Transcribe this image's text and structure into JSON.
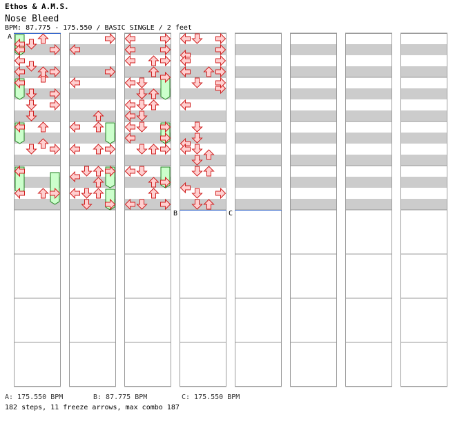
{
  "header": {
    "artist": "Ethos & A.M.S.",
    "title": "Nose Bleed",
    "meta": "BPM: 87.775 - 175.550 / BASIC SINGLE / 2 feet"
  },
  "bpm_markers": [
    {
      "label": "A",
      "column": 0,
      "beat": 0
    },
    {
      "label": "B",
      "column": 3,
      "beat": 16
    },
    {
      "label": "C",
      "column": 4,
      "beat": 16
    }
  ],
  "footer": {
    "bpm_a": "A: 175.550 BPM",
    "bpm_b": "B: 87.775 BPM",
    "bpm_c": "C: 175.550 BPM",
    "stats": "182 steps, 11 freeze arrows, max combo 187"
  },
  "colors": {
    "arrow_fill": "#ffd0d0",
    "arrow_stroke": "#d02020",
    "freeze_fill": "#ccffcc",
    "freeze_stroke": "#208020",
    "stripe": "#cccccc",
    "marker_line": "#3366cc"
  },
  "chart": {
    "columns": 8,
    "beats_per_column": 32,
    "lanes": [
      "left",
      "down",
      "up",
      "right"
    ],
    "notes": [
      [
        0,
        0,
        1
      ],
      [
        0,
        0,
        2
      ],
      [
        0,
        0,
        4
      ],
      [
        0,
        0,
        6
      ],
      [
        1,
        0,
        16
      ],
      [
        1,
        0,
        20
      ],
      [
        1,
        1,
        28
      ],
      [
        1,
        2,
        26
      ],
      [
        1,
        3,
        24
      ],
      [
        2,
        0,
        4
      ],
      [
        2,
        0,
        8
      ],
      [
        2,
        0,
        12
      ],
      [
        2,
        0,
        16
      ],
      [
        2,
        0,
        18
      ],
      [
        2,
        0,
        24
      ],
      [
        2,
        0,
        30
      ],
      [
        2,
        3,
        0
      ],
      [
        2,
        3,
        18
      ],
      [
        2,
        3,
        26
      ],
      [
        2,
        3,
        30
      ],
      [
        3,
        0,
        0
      ],
      [
        3,
        0,
        4
      ],
      [
        3,
        0,
        6
      ],
      [
        3,
        1,
        8
      ],
      [
        3,
        1,
        18
      ],
      [
        3,
        1,
        20
      ],
      [
        3,
        1,
        22
      ],
      [
        3,
        1,
        28
      ],
      [
        3,
        1,
        30
      ],
      [
        3,
        3,
        0
      ],
      [
        3,
        3,
        2
      ],
      [
        3,
        3,
        4
      ],
      [
        3,
        3,
        6
      ],
      [
        0,
        1,
        1
      ],
      [
        0,
        1,
        5
      ],
      [
        0,
        2,
        7
      ],
      [
        0,
        1,
        12
      ],
      [
        0,
        1,
        14
      ],
      [
        0,
        2,
        19
      ],
      [
        0,
        0,
        24
      ],
      [
        0,
        0,
        28
      ],
      [
        1,
        2,
        16
      ],
      [
        1,
        2,
        20
      ],
      [
        1,
        3,
        24
      ],
      [
        1,
        0,
        25
      ],
      [
        1,
        1,
        30
      ],
      [
        1,
        3,
        30
      ],
      [
        1,
        0,
        28
      ],
      [
        2,
        0,
        0
      ],
      [
        2,
        0,
        2
      ],
      [
        2,
        2,
        4
      ],
      [
        2,
        3,
        7
      ],
      [
        2,
        1,
        8
      ],
      [
        2,
        2,
        10
      ],
      [
        2,
        1,
        12
      ],
      [
        2,
        1,
        16
      ],
      [
        2,
        2,
        20
      ],
      [
        2,
        1,
        24
      ],
      [
        2,
        2,
        28
      ],
      [
        2,
        1,
        30
      ],
      [
        3,
        1,
        0
      ],
      [
        3,
        0,
        3
      ],
      [
        3,
        2,
        6
      ],
      [
        3,
        3,
        9
      ],
      [
        3,
        1,
        16
      ],
      [
        3,
        0,
        19
      ],
      [
        3,
        2,
        21
      ],
      [
        3,
        1,
        24
      ],
      [
        3,
        0,
        27
      ],
      [
        3,
        2,
        30
      ],
      [
        0,
        2,
        0
      ],
      [
        0,
        3,
        2
      ],
      [
        0,
        0,
        4
      ],
      [
        0,
        2,
        6
      ],
      [
        0,
        0,
        8
      ],
      [
        0,
        1,
        10
      ],
      [
        0,
        3,
        12
      ],
      [
        0,
        2,
        16
      ],
      [
        0,
        1,
        20
      ],
      [
        0,
        0,
        24
      ],
      [
        0,
        2,
        28
      ],
      [
        1,
        0,
        16
      ],
      [
        1,
        3,
        20
      ],
      [
        1,
        2,
        24
      ],
      [
        1,
        1,
        28
      ],
      [
        2,
        3,
        2
      ],
      [
        2,
        2,
        6
      ],
      [
        2,
        1,
        10
      ],
      [
        2,
        0,
        14
      ],
      [
        2,
        3,
        20
      ],
      [
        2,
        2,
        26
      ],
      [
        0,
        0,
        2
      ],
      [
        0,
        3,
        6
      ],
      [
        0,
        0,
        8
      ],
      [
        0,
        3,
        10
      ],
      [
        0,
        0,
        16
      ],
      [
        0,
        3,
        20
      ],
      [
        0,
        0,
        24
      ],
      [
        0,
        3,
        28
      ],
      [
        1,
        3,
        0
      ],
      [
        1,
        0,
        2
      ],
      [
        1,
        3,
        6
      ],
      [
        1,
        0,
        8
      ],
      [
        1,
        2,
        14
      ],
      [
        1,
        1,
        24
      ],
      [
        1,
        2,
        28
      ],
      [
        2,
        0,
        0
      ],
      [
        2,
        0,
        2
      ],
      [
        2,
        3,
        4
      ],
      [
        2,
        0,
        8
      ],
      [
        2,
        1,
        10
      ],
      [
        2,
        2,
        12
      ],
      [
        2,
        1,
        14
      ],
      [
        2,
        3,
        16
      ],
      [
        2,
        1,
        20
      ],
      [
        2,
        0,
        24
      ],
      [
        2,
        2,
        28
      ],
      [
        3,
        0,
        0
      ],
      [
        3,
        0,
        4
      ],
      [
        3,
        3,
        8
      ],
      [
        3,
        0,
        12
      ],
      [
        3,
        1,
        16
      ],
      [
        3,
        0,
        20
      ],
      [
        3,
        2,
        24
      ],
      [
        3,
        3,
        28
      ]
    ],
    "freezes": [
      [
        0,
        0,
        0,
        2
      ],
      [
        0,
        0,
        8,
        10
      ],
      [
        0,
        0,
        16,
        18
      ],
      [
        0,
        0,
        24,
        27
      ],
      [
        0,
        3,
        25,
        29
      ],
      [
        1,
        3,
        16,
        18
      ],
      [
        1,
        3,
        24,
        26
      ],
      [
        1,
        3,
        28,
        30
      ],
      [
        2,
        3,
        8,
        10
      ],
      [
        2,
        3,
        16,
        18
      ],
      [
        2,
        3,
        24,
        26
      ]
    ]
  }
}
